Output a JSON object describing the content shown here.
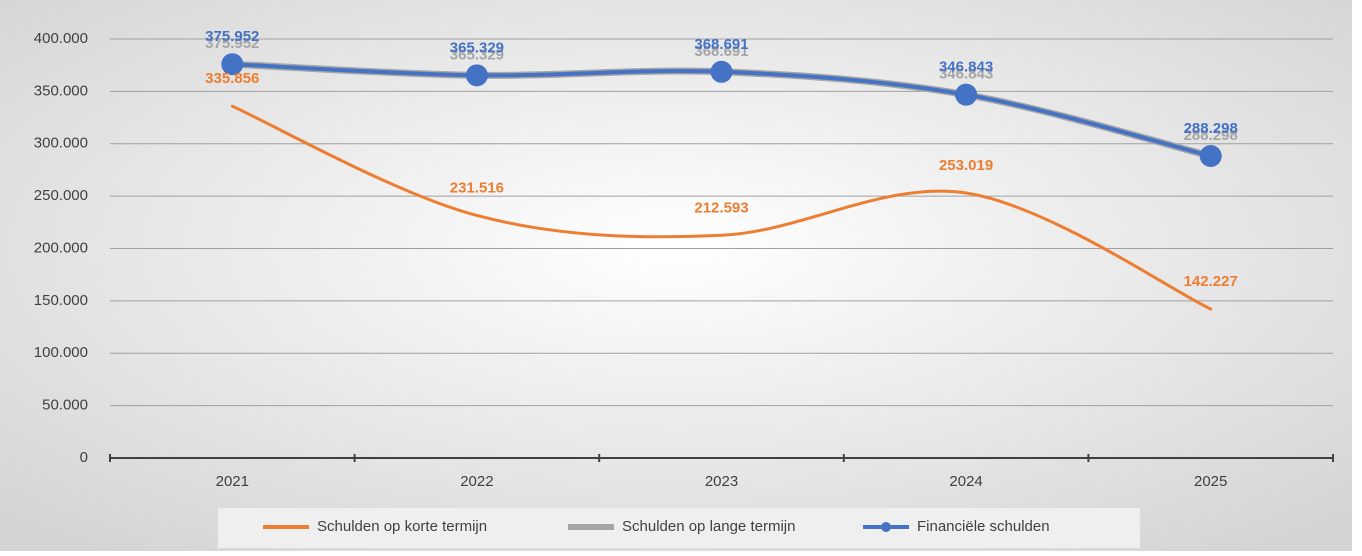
{
  "chart_data": {
    "type": "line",
    "categories": [
      "2021",
      "2022",
      "2023",
      "2024",
      "2025"
    ],
    "series": [
      {
        "name": "Schulden op korte termijn",
        "color": "#ed7d31",
        "values": [
          335856,
          231516,
          212593,
          253019,
          142227
        ],
        "value_labels": [
          "335.856",
          "231.516",
          "212.593",
          "253.019",
          "142.227"
        ]
      },
      {
        "name": "Schulden op lange termijn",
        "color": "#a5a5a5",
        "values": [
          375952,
          365329,
          368691,
          346843,
          288298
        ],
        "value_labels": [
          "375.952",
          "365.329",
          "368.691",
          "346.843",
          "288.298"
        ]
      },
      {
        "name": "Financiële schulden",
        "color": "#4472c4",
        "values": [
          375952,
          365329,
          368691,
          346843,
          288298
        ],
        "value_labels": [
          "375.952",
          "365.329",
          "368.691",
          "346.843",
          "288.298"
        ],
        "markers": true
      }
    ],
    "ylim": [
      0,
      400000
    ],
    "yticks": [
      {
        "value": 0,
        "label": "0"
      },
      {
        "value": 50000,
        "label": "50.000"
      },
      {
        "value": 100000,
        "label": "100.000"
      },
      {
        "value": 150000,
        "label": "150.000"
      },
      {
        "value": 200000,
        "label": "200.000"
      },
      {
        "value": 250000,
        "label": "250.000"
      },
      {
        "value": 300000,
        "label": "300.000"
      },
      {
        "value": 350000,
        "label": "350.000"
      },
      {
        "value": 400000,
        "label": "400.000"
      }
    ],
    "grid": true,
    "smooth": true,
    "legend": "bottom"
  }
}
